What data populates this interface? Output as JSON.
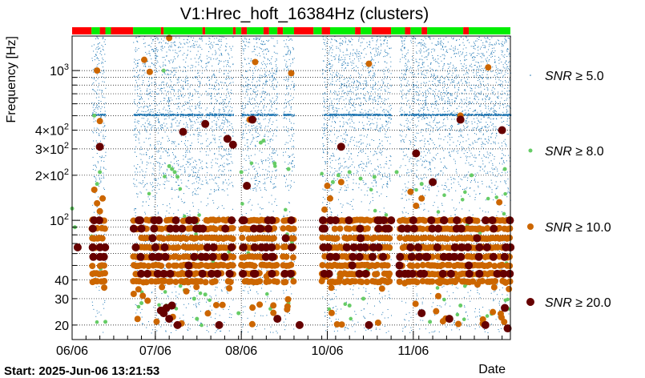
{
  "chart_data": {
    "type": "scatter",
    "title": "V1:Hrec_hoft_16384Hz (clusters)",
    "ylabel": "Frequency [Hz]",
    "xlabel": "Date",
    "yscale": "log",
    "ylim": [
      16,
      1700
    ],
    "xlim_days": [
      0,
      158
    ],
    "x_ticks": [
      {
        "label": "06/06",
        "day": 0
      },
      {
        "label": "07/06",
        "day": 30
      },
      {
        "label": "08/06",
        "day": 61
      },
      {
        "label": "10/06",
        "day": 92
      },
      {
        "label": "11/06",
        "day": 123
      }
    ],
    "y_ticks": [
      {
        "label": "10",
        "sup": "3",
        "value": 1000
      },
      {
        "label": "4×10",
        "sup": "2",
        "value": 400
      },
      {
        "label": "3×10",
        "sup": "2",
        "value": 300
      },
      {
        "label": "2×10",
        "sup": "2",
        "value": 200
      },
      {
        "label": "10",
        "sup": "2",
        "value": 100
      },
      {
        "label": "40",
        "sup": "",
        "value": 40
      },
      {
        "label": "30",
        "sup": "",
        "value": 30
      },
      {
        "label": "20",
        "sup": "",
        "value": 20
      }
    ],
    "segment_bar": [
      {
        "start": 0,
        "end": 7,
        "state": "off"
      },
      {
        "start": 7,
        "end": 10,
        "state": "on"
      },
      {
        "start": 10,
        "end": 12,
        "state": "off"
      },
      {
        "start": 12,
        "end": 14,
        "state": "on"
      },
      {
        "start": 14,
        "end": 22,
        "state": "off"
      },
      {
        "start": 22,
        "end": 32,
        "state": "on"
      },
      {
        "start": 32,
        "end": 33,
        "state": "off"
      },
      {
        "start": 33,
        "end": 47,
        "state": "on"
      },
      {
        "start": 47,
        "end": 48,
        "state": "off"
      },
      {
        "start": 48,
        "end": 58,
        "state": "on"
      },
      {
        "start": 58,
        "end": 59,
        "state": "off"
      },
      {
        "start": 59,
        "end": 61,
        "state": "on"
      },
      {
        "start": 61,
        "end": 63,
        "state": "off"
      },
      {
        "start": 63,
        "end": 69,
        "state": "on"
      },
      {
        "start": 69,
        "end": 71,
        "state": "off"
      },
      {
        "start": 71,
        "end": 74,
        "state": "on"
      },
      {
        "start": 74,
        "end": 76,
        "state": "off"
      },
      {
        "start": 76,
        "end": 80,
        "state": "on"
      },
      {
        "start": 80,
        "end": 87,
        "state": "off"
      },
      {
        "start": 87,
        "end": 90,
        "state": "on"
      },
      {
        "start": 90,
        "end": 93,
        "state": "off"
      },
      {
        "start": 93,
        "end": 102,
        "state": "on"
      },
      {
        "start": 102,
        "end": 104,
        "state": "off"
      },
      {
        "start": 104,
        "end": 108,
        "state": "on"
      },
      {
        "start": 108,
        "end": 115,
        "state": "off"
      },
      {
        "start": 115,
        "end": 120,
        "state": "on"
      },
      {
        "start": 120,
        "end": 122,
        "state": "off"
      },
      {
        "start": 122,
        "end": 126,
        "state": "on"
      },
      {
        "start": 126,
        "end": 128,
        "state": "off"
      },
      {
        "start": 128,
        "end": 141,
        "state": "on"
      },
      {
        "start": 141,
        "end": 143,
        "state": "off"
      },
      {
        "start": 143,
        "end": 158,
        "state": "on"
      }
    ],
    "segment_colors": {
      "on": "#00ee00",
      "off": "#ff0000"
    },
    "active_periods": [
      [
        7,
        12
      ],
      [
        22,
        47
      ],
      [
        48,
        58
      ],
      [
        61,
        74
      ],
      [
        76,
        80
      ],
      [
        90,
        115
      ],
      [
        118,
        158
      ]
    ],
    "series": [
      {
        "name": "SNR ≥ 5.0",
        "legend_prefix": "SNR",
        "legend_suffix": "≥ 5.0",
        "color": "#1f77b4",
        "size": "tiny"
      },
      {
        "name": "SNR ≥ 8.0",
        "legend_prefix": "SNR",
        "legend_suffix": "≥ 8.0",
        "color": "#66cc66",
        "size": "small"
      },
      {
        "name": "SNR ≥ 10.0",
        "legend_prefix": "SNR",
        "legend_suffix": "≥ 10.0",
        "color": "#cc6600",
        "size": "medium"
      },
      {
        "name": "SNR ≥ 20.0",
        "legend_prefix": "SNR",
        "legend_suffix": "≥ 20.0",
        "color": "#660000",
        "size": "large"
      }
    ],
    "band_frequencies_hz": [
      100,
      88,
      76,
      66,
      57,
      50,
      44,
      39
    ],
    "snr20_points": [
      {
        "day": 2,
        "freq": 66
      },
      {
        "day": 10,
        "freq": 310
      },
      {
        "day": 24,
        "freq": 100
      },
      {
        "day": 25,
        "freq": 88
      },
      {
        "day": 29,
        "freq": 76
      },
      {
        "day": 30,
        "freq": 66
      },
      {
        "day": 31,
        "freq": 57
      },
      {
        "day": 32,
        "freq": 25
      },
      {
        "day": 33,
        "freq": 24
      },
      {
        "day": 34,
        "freq": 26
      },
      {
        "day": 35,
        "freq": 22
      },
      {
        "day": 36,
        "freq": 27
      },
      {
        "day": 38,
        "freq": 20
      },
      {
        "day": 40,
        "freq": 390
      },
      {
        "day": 42,
        "freq": 50
      },
      {
        "day": 44,
        "freq": 100
      },
      {
        "day": 46,
        "freq": 88
      },
      {
        "day": 48,
        "freq": 440
      },
      {
        "day": 51,
        "freq": 66
      },
      {
        "day": 53,
        "freq": 20
      },
      {
        "day": 55,
        "freq": 57
      },
      {
        "day": 56,
        "freq": 350
      },
      {
        "day": 58,
        "freq": 320
      },
      {
        "day": 62,
        "freq": 100
      },
      {
        "day": 63,
        "freq": 170
      },
      {
        "day": 65,
        "freq": 470
      },
      {
        "day": 66,
        "freq": 44
      },
      {
        "day": 68,
        "freq": 88
      },
      {
        "day": 70,
        "freq": 66
      },
      {
        "day": 72,
        "freq": 57
      },
      {
        "day": 74,
        "freq": 22
      },
      {
        "day": 77,
        "freq": 76
      },
      {
        "day": 79,
        "freq": 100
      },
      {
        "day": 82,
        "freq": 20
      },
      {
        "day": 91,
        "freq": 88
      },
      {
        "day": 93,
        "freq": 57
      },
      {
        "day": 95,
        "freq": 100
      },
      {
        "day": 97,
        "freq": 310
      },
      {
        "day": 99,
        "freq": 66
      },
      {
        "day": 101,
        "freq": 50
      },
      {
        "day": 104,
        "freq": 76
      },
      {
        "day": 107,
        "freq": 20
      },
      {
        "day": 111,
        "freq": 100
      },
      {
        "day": 114,
        "freq": 88
      },
      {
        "day": 118,
        "freq": 50
      },
      {
        "day": 120,
        "freq": 44
      },
      {
        "day": 122,
        "freq": 66
      },
      {
        "day": 124,
        "freq": 280
      },
      {
        "day": 126,
        "freq": 24
      },
      {
        "day": 128,
        "freq": 57
      },
      {
        "day": 130,
        "freq": 180
      },
      {
        "day": 132,
        "freq": 88
      },
      {
        "day": 134,
        "freq": 100
      },
      {
        "day": 136,
        "freq": 22
      },
      {
        "day": 138,
        "freq": 66
      },
      {
        "day": 140,
        "freq": 470
      },
      {
        "day": 143,
        "freq": 50
      },
      {
        "day": 146,
        "freq": 76
      },
      {
        "day": 149,
        "freq": 20
      },
      {
        "day": 152,
        "freq": 88
      },
      {
        "day": 155,
        "freq": 400
      },
      {
        "day": 156,
        "freq": 26
      },
      {
        "day": 157,
        "freq": 19
      }
    ],
    "snr10_points": [
      {
        "day": 9,
        "freq": 1000
      },
      {
        "day": 10,
        "freq": 460
      },
      {
        "day": 26,
        "freq": 1180
      },
      {
        "day": 28,
        "freq": 980
      },
      {
        "day": 35,
        "freq": 1650
      },
      {
        "day": 64,
        "freq": 470
      },
      {
        "day": 66,
        "freq": 1140
      },
      {
        "day": 79,
        "freq": 960
      },
      {
        "day": 107,
        "freq": 1110
      },
      {
        "day": 140,
        "freq": 500
      },
      {
        "day": 150,
        "freq": 1050
      },
      {
        "day": 8,
        "freq": 160
      },
      {
        "day": 9,
        "freq": 130
      },
      {
        "day": 10,
        "freq": 115
      },
      {
        "day": 11,
        "freq": 140
      },
      {
        "day": 92,
        "freq": 170
      },
      {
        "day": 93,
        "freq": 140
      },
      {
        "day": 91,
        "freq": 118
      },
      {
        "day": 97,
        "freq": 180
      },
      {
        "day": 122,
        "freq": 155
      },
      {
        "day": 124,
        "freq": 125
      },
      {
        "day": 126,
        "freq": 140
      },
      {
        "day": 154,
        "freq": 132
      }
    ],
    "snr8_points": [
      {
        "day": 8,
        "freq": 500
      },
      {
        "day": 10,
        "freq": 210
      },
      {
        "day": 9,
        "freq": 175
      },
      {
        "day": 33,
        "freq": 1000
      },
      {
        "day": 35,
        "freq": 230
      },
      {
        "day": 36,
        "freq": 220
      },
      {
        "day": 37,
        "freq": 210
      },
      {
        "day": 38,
        "freq": 195
      },
      {
        "day": 61,
        "freq": 210
      },
      {
        "day": 68,
        "freq": 330
      },
      {
        "day": 69,
        "freq": 340
      },
      {
        "day": 73,
        "freq": 240
      },
      {
        "day": 78,
        "freq": 220
      },
      {
        "day": 94,
        "freq": 180
      },
      {
        "day": 96,
        "freq": 200
      },
      {
        "day": 100,
        "freq": 210
      },
      {
        "day": 104,
        "freq": 190
      },
      {
        "day": 109,
        "freq": 195
      },
      {
        "day": 117,
        "freq": 210
      },
      {
        "day": 126,
        "freq": 175
      },
      {
        "day": 144,
        "freq": 200
      },
      {
        "day": 156,
        "freq": 220
      },
      {
        "day": 0,
        "freq": 120
      },
      {
        "day": 1,
        "freq": 90
      },
      {
        "day": 44,
        "freq": 30
      },
      {
        "day": 48,
        "freq": 32
      },
      {
        "day": 60,
        "freq": 24
      },
      {
        "day": 78,
        "freq": 28
      },
      {
        "day": 100,
        "freq": 27
      },
      {
        "day": 105,
        "freq": 30
      },
      {
        "day": 129,
        "freq": 21
      },
      {
        "day": 140,
        "freq": 27
      },
      {
        "day": 12,
        "freq": 21
      },
      {
        "day": 25,
        "freq": 28
      },
      {
        "day": 45,
        "freq": 22
      }
    ],
    "start_label": "Start: 2025-Jun-06 13:21:53"
  }
}
